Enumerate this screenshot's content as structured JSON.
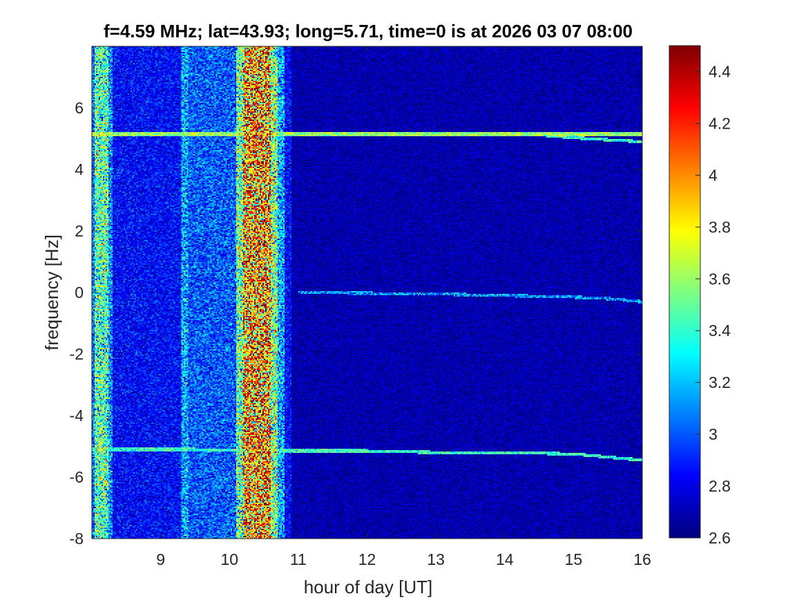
{
  "chart_data": {
    "type": "heatmap",
    "title": "f=4.59 MHz;  lat=43.93; long=5.71, time=0 is at 2026 03 07 08:00",
    "xlabel": "hour of day [UT]",
    "ylabel": "frequency [Hz]",
    "xlim": [
      8.0,
      16.0
    ],
    "ylim": [
      -8,
      8
    ],
    "x_ticks": [
      9,
      10,
      11,
      12,
      13,
      14,
      15,
      16
    ],
    "y_ticks": [
      -8,
      -6,
      -4,
      -2,
      0,
      2,
      4,
      6
    ],
    "colormap": "jet",
    "clim": [
      2.6,
      4.5
    ],
    "colorbar_ticks": [
      2.6,
      2.8,
      3,
      3.2,
      3.4,
      3.6,
      3.8,
      4,
      4.2,
      4.4
    ],
    "background_level": 2.68,
    "broadband_bands": [
      {
        "x_start": 8.0,
        "x_end": 8.05,
        "level": 3.05
      },
      {
        "x_start": 8.05,
        "x_end": 8.25,
        "level": 3.45
      },
      {
        "x_start": 8.25,
        "x_end": 8.3,
        "level": 3.1
      },
      {
        "x_start": 8.3,
        "x_end": 9.3,
        "level": 2.85
      },
      {
        "x_start": 9.3,
        "x_end": 9.4,
        "level": 3.15
      },
      {
        "x_start": 9.4,
        "x_end": 10.1,
        "level": 3.0
      },
      {
        "x_start": 10.1,
        "x_end": 10.2,
        "level": 3.5
      },
      {
        "x_start": 10.2,
        "x_end": 10.6,
        "level": 3.95
      },
      {
        "x_start": 10.6,
        "x_end": 10.7,
        "level": 3.55
      },
      {
        "x_start": 10.7,
        "x_end": 10.8,
        "level": 3.15
      },
      {
        "x_start": 10.8,
        "x_end": 10.9,
        "level": 2.85
      }
    ],
    "spectral_lines": [
      {
        "x": [
          8.0,
          9.3,
          11.0,
          12.0,
          13.0,
          14.0,
          15.0,
          15.5,
          16.0
        ],
        "y": [
          5.15,
          5.15,
          5.15,
          5.15,
          5.15,
          5.15,
          5.15,
          5.15,
          5.15
        ],
        "level": 3.6
      },
      {
        "x": [
          14.6,
          15.2,
          15.6,
          16.0
        ],
        "y": [
          5.1,
          5.0,
          4.95,
          4.9
        ],
        "level": 3.4
      },
      {
        "x": [
          8.0,
          9.3,
          11.0,
          12.0,
          13.0,
          14.0,
          15.0,
          15.5,
          16.0
        ],
        "y": [
          -5.1,
          -5.1,
          -5.15,
          -5.15,
          -5.2,
          -5.2,
          -5.25,
          -5.35,
          -5.45
        ],
        "level": 3.4
      },
      {
        "x": [
          11.0,
          13.0,
          14.0,
          15.0,
          15.5,
          16.0
        ],
        "y": [
          0.0,
          -0.05,
          -0.1,
          -0.15,
          -0.2,
          -0.3
        ],
        "level": 3.1
      }
    ]
  }
}
